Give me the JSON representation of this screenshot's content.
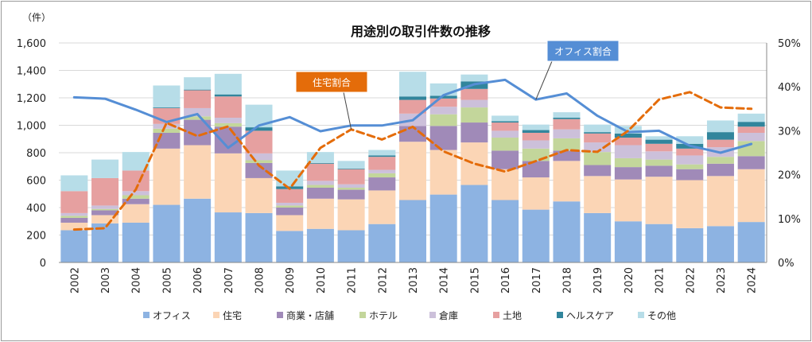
{
  "chart_data": {
    "type": "bar",
    "stacked": true,
    "title": "用途別の取引件数の推移",
    "y_unit_label": "（件）",
    "ylim": [
      0,
      1600
    ],
    "yticks": [
      "0",
      "200",
      "400",
      "600",
      "800",
      "1,000",
      "1,200",
      "1,400",
      "1,600"
    ],
    "ytick_values": [
      0,
      200,
      400,
      600,
      800,
      1000,
      1200,
      1400,
      1600
    ],
    "y2lim": [
      0,
      50
    ],
    "y2ticks": [
      "0%",
      "10%",
      "20%",
      "30%",
      "40%",
      "50%"
    ],
    "y2tick_values": [
      0,
      10,
      20,
      30,
      40,
      50
    ],
    "categories": [
      "2002",
      "2003",
      "2004",
      "2005",
      "2006",
      "2007",
      "2008",
      "2009",
      "2010",
      "2011",
      "2012",
      "2013",
      "2014",
      "2015",
      "2016",
      "2017",
      "2018",
      "2019",
      "2020",
      "2021",
      "2022",
      "2023",
      "2024"
    ],
    "series": [
      {
        "name": "オフィス",
        "color": "#8db3e2",
        "values": [
          235,
          285,
          290,
          420,
          465,
          365,
          360,
          230,
          245,
          235,
          280,
          455,
          495,
          565,
          455,
          385,
          445,
          360,
          300,
          280,
          250,
          265,
          295
        ]
      },
      {
        "name": "住宅",
        "color": "#fbd5b5",
        "values": [
          55,
          60,
          135,
          410,
          390,
          430,
          255,
          115,
          220,
          225,
          245,
          425,
          325,
          310,
          225,
          235,
          295,
          270,
          305,
          345,
          350,
          365,
          385
        ]
      },
      {
        "name": "商業・店舗",
        "color": "#a08ab8",
        "values": [
          35,
          35,
          40,
          115,
          185,
          195,
          110,
          55,
          80,
          70,
          95,
          115,
          175,
          145,
          135,
          120,
          75,
          80,
          90,
          80,
          80,
          90,
          95
        ]
      },
      {
        "name": "ホテル",
        "color": "#c3d69b",
        "values": [
          15,
          10,
          25,
          30,
          25,
          25,
          20,
          15,
          20,
          15,
          30,
          0,
          85,
          110,
          95,
          90,
          90,
          95,
          65,
          45,
          35,
          50,
          110
        ]
      },
      {
        "name": "倉庫",
        "color": "#ccc0da",
        "values": [
          20,
          25,
          30,
          35,
          60,
          40,
          50,
          20,
          30,
          25,
          25,
          90,
          55,
          55,
          50,
          60,
          65,
          70,
          95,
          60,
          65,
          70,
          60
        ]
      },
      {
        "name": "土地",
        "color": "#e6a0a0",
        "values": [
          160,
          200,
          150,
          115,
          130,
          155,
          165,
          100,
          125,
          110,
          95,
          100,
          60,
          80,
          60,
          55,
          75,
          65,
          55,
          55,
          50,
          55,
          45
        ]
      },
      {
        "name": "ヘルスケア",
        "color": "#31859c",
        "values": [
          0,
          0,
          0,
          5,
          5,
          15,
          25,
          20,
          5,
          5,
          10,
          25,
          20,
          55,
          10,
          20,
          10,
          10,
          30,
          30,
          35,
          55,
          35
        ]
      },
      {
        "name": "その他",
        "color": "#b7dde8",
        "values": [
          115,
          135,
          135,
          160,
          90,
          150,
          165,
          115,
          80,
          55,
          40,
          180,
          90,
          50,
          40,
          40,
          40,
          55,
          55,
          25,
          55,
          85,
          60
        ]
      }
    ],
    "lines": [
      {
        "name": "オフィス割合",
        "color": "#558ed5",
        "style": "solid",
        "axis": "secondary",
        "values": [
          37.6,
          37.3,
          34.8,
          32.0,
          33.8,
          26.1,
          31.2,
          33.1,
          29.9,
          31.2,
          31.2,
          32.4,
          38.1,
          40.6,
          41.6,
          37.1,
          38.5,
          33.4,
          29.7,
          30.0,
          26.6,
          25.0,
          27.0
        ]
      },
      {
        "name": "住宅割合",
        "color": "#e46c0a",
        "style": "dashed",
        "axis": "secondary",
        "values": [
          7.5,
          7.8,
          16.6,
          31.8,
          28.8,
          31.0,
          22.1,
          16.8,
          26.1,
          30.3,
          28.0,
          30.9,
          25.3,
          22.5,
          20.7,
          23.1,
          25.6,
          25.2,
          30.0,
          37.1,
          38.8,
          35.3,
          35.0
        ]
      }
    ],
    "annotations": [
      {
        "text": "オフィス割合",
        "color": "#558ed5",
        "points_to": "2017"
      },
      {
        "text": "住宅割合",
        "color": "#e46c0a",
        "points_to": "2011"
      }
    ],
    "grid": "horizontal",
    "legend": "bottom"
  }
}
